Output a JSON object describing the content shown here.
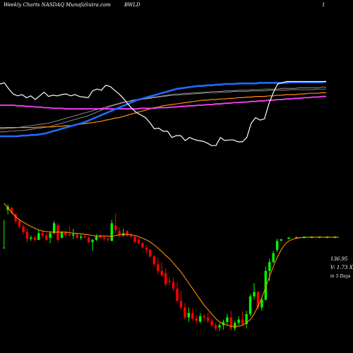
{
  "header": {
    "left": "Weekly Charts NASDAQ MunafaSutra.com",
    "middle": "BWLD",
    "right": "1"
  },
  "readouts": {
    "price": "136.95",
    "volume": "V: 1.73 X",
    "period": "in 5 Days"
  },
  "colors": {
    "background": "#000000",
    "bull": "#00ff00",
    "bear": "#ff0000",
    "ema": "#ff8c00",
    "forecast": "#00ff00",
    "indicator": "#ffffff",
    "ma_blue": "#1e6bff",
    "ma_magenta": "#ff40ff",
    "ma_orange": "#ff8c00",
    "ma_gray": "#aaaaaa"
  },
  "chart_data": [
    {
      "type": "line",
      "panel": "indicators",
      "note_scale": "relative 0-100 (no axis printed)",
      "series": [
        {
          "key": "white",
          "values": [
            92,
            94,
            84,
            76,
            73,
            75,
            70,
            73,
            67,
            73,
            79,
            72,
            74,
            73,
            75,
            76,
            73,
            75,
            72,
            71,
            70,
            81,
            84,
            82,
            90,
            88,
            82,
            76,
            69,
            60,
            52,
            46,
            42,
            38,
            30,
            20,
            21,
            16,
            16,
            6,
            9,
            9,
            1,
            6,
            3,
            1,
            0,
            -3,
            -7,
            -7,
            6,
            1,
            2,
            2,
            -1,
            -1,
            6,
            29,
            38,
            34,
            36,
            60,
            78,
            92,
            94,
            96,
            96,
            96,
            96,
            96,
            96,
            96,
            96,
            96,
            96
          ]
        },
        {
          "key": "blue",
          "values": [
            8,
            8,
            8,
            8,
            8,
            9,
            9,
            10,
            10,
            11,
            12,
            14,
            16,
            18,
            20,
            22,
            24,
            26,
            28,
            30,
            33,
            36,
            39,
            42,
            45,
            48,
            51,
            54,
            57,
            60,
            63,
            66,
            68,
            70,
            72,
            74,
            76,
            78,
            80,
            82,
            84,
            85,
            86,
            87,
            88,
            89,
            89,
            90,
            90,
            91,
            91,
            92,
            92,
            92,
            93,
            93,
            93,
            93,
            93,
            94,
            94,
            94,
            94,
            94,
            94,
            94,
            95,
            95,
            95,
            95,
            95,
            95,
            95,
            95,
            96
          ]
        },
        {
          "key": "magenta",
          "values": [
            58,
            58,
            58,
            58,
            57,
            57,
            56,
            56,
            55,
            55,
            54,
            54,
            53,
            53,
            53,
            52,
            52,
            52,
            52,
            52,
            52,
            52,
            52,
            52,
            52,
            52,
            52,
            52,
            52,
            52,
            52,
            52,
            53,
            53,
            53,
            53,
            54,
            54,
            54,
            55,
            55,
            56,
            56,
            57,
            57,
            58,
            58,
            59,
            59,
            60,
            60,
            61,
            61,
            62,
            62,
            63,
            63,
            64,
            64,
            65,
            65,
            66,
            66,
            67,
            67,
            68,
            68,
            69,
            69,
            70,
            70,
            71,
            71,
            72,
            72
          ]
        },
        {
          "key": "orange",
          "values": [
            22,
            22,
            22,
            22,
            22,
            22,
            22,
            22,
            22,
            23,
            23,
            23,
            23,
            24,
            24,
            25,
            25,
            26,
            27,
            28,
            29,
            30,
            31,
            32,
            34,
            35,
            37,
            38,
            40,
            42,
            44,
            46,
            48,
            50,
            52,
            54,
            55,
            57,
            58,
            59,
            60,
            61,
            62,
            63,
            64,
            65,
            66,
            66,
            67,
            67,
            68,
            68,
            69,
            69,
            70,
            70,
            71,
            71,
            72,
            72,
            72,
            73,
            73,
            74,
            74,
            75,
            75,
            75,
            76,
            76,
            77,
            77,
            77,
            78,
            78
          ]
        },
        {
          "key": "gray1",
          "values": [
            15,
            15,
            16,
            16,
            17,
            17,
            18,
            19,
            20,
            21,
            22,
            23,
            25,
            27,
            29,
            31,
            33,
            35,
            37,
            39,
            41,
            44,
            47,
            50,
            53,
            56,
            58,
            60,
            62,
            64,
            66,
            67,
            68,
            69,
            70,
            71,
            72,
            73,
            74,
            75,
            76,
            76,
            77,
            77,
            78,
            78,
            79,
            79,
            80,
            80,
            80,
            81,
            81,
            81,
            82,
            82,
            82,
            83,
            83,
            83,
            84,
            84,
            84,
            84,
            85,
            85,
            85,
            85,
            86,
            86,
            86,
            86,
            86,
            87,
            87
          ]
        },
        {
          "key": "gray2",
          "values": [
            20,
            20,
            21,
            21,
            22,
            23,
            24,
            25,
            26,
            27,
            28,
            29,
            31,
            33,
            35,
            37,
            39,
            41,
            43,
            45,
            47,
            49,
            51,
            53,
            55,
            57,
            59,
            61,
            63,
            64,
            65,
            66,
            67,
            68,
            69,
            70,
            71,
            72,
            73,
            74,
            74,
            75,
            75,
            76,
            76,
            77,
            77,
            78,
            78,
            78,
            79,
            79,
            79,
            80,
            80,
            80,
            80,
            81,
            81,
            81,
            81,
            82,
            82,
            82,
            82,
            82,
            83,
            83,
            83,
            83,
            83,
            83,
            84,
            84,
            84
          ]
        }
      ]
    },
    {
      "type": "candlestick",
      "panel": "price",
      "note_scale": "relative price units (no axis printed)",
      "candles": [
        {
          "o": 0,
          "h": 50,
          "l": 0,
          "c": 0
        },
        {
          "o": 68,
          "h": 78,
          "l": 60,
          "c": 74
        },
        {
          "o": 72,
          "h": 74,
          "l": 60,
          "c": 62
        },
        {
          "o": 60,
          "h": 62,
          "l": 44,
          "c": 48
        },
        {
          "o": 48,
          "h": 52,
          "l": 34,
          "c": 38
        },
        {
          "o": 38,
          "h": 42,
          "l": 24,
          "c": 28
        },
        {
          "o": 28,
          "h": 34,
          "l": 10,
          "c": 16
        },
        {
          "o": 16,
          "h": 22,
          "l": 12,
          "c": 18
        },
        {
          "o": 18,
          "h": 22,
          "l": 10,
          "c": 14
        },
        {
          "o": 14,
          "h": 32,
          "l": 14,
          "c": 26
        },
        {
          "o": 26,
          "h": 30,
          "l": 18,
          "c": 22
        },
        {
          "o": 22,
          "h": 26,
          "l": 12,
          "c": 14
        },
        {
          "o": 18,
          "h": 30,
          "l": 8,
          "c": 26
        },
        {
          "o": 26,
          "h": 48,
          "l": 24,
          "c": 44
        },
        {
          "o": 40,
          "h": 44,
          "l": 10,
          "c": 14
        },
        {
          "o": 18,
          "h": 30,
          "l": 16,
          "c": 28
        },
        {
          "o": 28,
          "h": 30,
          "l": 18,
          "c": 22
        },
        {
          "o": 24,
          "h": 38,
          "l": 20,
          "c": 22
        },
        {
          "o": 22,
          "h": 34,
          "l": 16,
          "c": 24
        },
        {
          "o": 24,
          "h": 26,
          "l": 16,
          "c": 18
        },
        {
          "o": 18,
          "h": 24,
          "l": 14,
          "c": 20
        },
        {
          "o": 20,
          "h": 24,
          "l": 18,
          "c": 18
        },
        {
          "o": 18,
          "h": 20,
          "l": 8,
          "c": 10
        },
        {
          "o": 10,
          "h": 16,
          "l": -6,
          "c": 14
        },
        {
          "o": 14,
          "h": 24,
          "l": 12,
          "c": 20
        },
        {
          "o": 22,
          "h": 24,
          "l": 16,
          "c": 18
        },
        {
          "o": 18,
          "h": 22,
          "l": 12,
          "c": 16
        },
        {
          "o": 16,
          "h": 18,
          "l": 10,
          "c": 14
        },
        {
          "o": 12,
          "h": 50,
          "l": 12,
          "c": 44
        },
        {
          "o": 40,
          "h": 62,
          "l": 26,
          "c": 32
        },
        {
          "o": 30,
          "h": 36,
          "l": 18,
          "c": 22
        },
        {
          "o": 22,
          "h": 34,
          "l": 20,
          "c": 26
        },
        {
          "o": 30,
          "h": 32,
          "l": 20,
          "c": 22
        },
        {
          "o": 22,
          "h": 26,
          "l": 18,
          "c": 20
        },
        {
          "o": 20,
          "h": 22,
          "l": 8,
          "c": 10
        },
        {
          "o": 14,
          "h": 18,
          "l": 6,
          "c": 8
        },
        {
          "o": 8,
          "h": 10,
          "l": 0,
          "c": 0
        },
        {
          "o": 0,
          "h": 4,
          "l": -10,
          "c": -4
        },
        {
          "o": -4,
          "h": -2,
          "l": -18,
          "c": -16
        },
        {
          "o": -16,
          "h": -14,
          "l": -34,
          "c": -30
        },
        {
          "o": -30,
          "h": -18,
          "l": -48,
          "c": -42
        },
        {
          "o": -42,
          "h": -26,
          "l": -52,
          "c": -50
        },
        {
          "o": -46,
          "h": -38,
          "l": -70,
          "c": -66
        },
        {
          "o": -60,
          "h": -54,
          "l": -68,
          "c": -62
        },
        {
          "o": -62,
          "h": -54,
          "l": -78,
          "c": -74
        },
        {
          "o": -74,
          "h": -62,
          "l": -98,
          "c": -96
        },
        {
          "o": -96,
          "h": -78,
          "l": -112,
          "c": -108
        },
        {
          "o": -108,
          "h": -100,
          "l": -130,
          "c": -126
        },
        {
          "o": -126,
          "h": -108,
          "l": -134,
          "c": -118
        },
        {
          "o": -118,
          "h": -110,
          "l": -132,
          "c": -128
        },
        {
          "o": -128,
          "h": -122,
          "l": -138,
          "c": -132
        },
        {
          "o": -134,
          "h": -118,
          "l": -136,
          "c": -124
        },
        {
          "o": -124,
          "h": -120,
          "l": -132,
          "c": -126
        },
        {
          "o": -126,
          "h": -118,
          "l": -136,
          "c": -132
        },
        {
          "o": -132,
          "h": -128,
          "l": -144,
          "c": -140
        },
        {
          "o": -140,
          "h": -136,
          "l": -150,
          "c": -146
        },
        {
          "o": -144,
          "h": -136,
          "l": -150,
          "c": -140
        },
        {
          "o": -140,
          "h": -130,
          "l": -148,
          "c": -134
        },
        {
          "o": -134,
          "h": -120,
          "l": -140,
          "c": -126
        },
        {
          "o": -126,
          "h": -114,
          "l": -150,
          "c": -146
        },
        {
          "o": -146,
          "h": -132,
          "l": -150,
          "c": -136
        },
        {
          "o": -136,
          "h": -124,
          "l": -140,
          "c": -130
        },
        {
          "o": -130,
          "h": -116,
          "l": -140,
          "c": -138
        },
        {
          "o": -138,
          "h": -114,
          "l": -146,
          "c": -120
        },
        {
          "o": -120,
          "h": -84,
          "l": -124,
          "c": -88
        },
        {
          "o": -88,
          "h": -64,
          "l": -94,
          "c": -80
        },
        {
          "o": -80,
          "h": -78,
          "l": -112,
          "c": -108
        },
        {
          "o": -108,
          "h": -90,
          "l": -114,
          "c": -94
        },
        {
          "o": -94,
          "h": -34,
          "l": -96,
          "c": -42
        },
        {
          "o": -42,
          "h": -20,
          "l": -60,
          "c": -26
        },
        {
          "o": -26,
          "h": -6,
          "l": -28,
          "c": -10
        },
        {
          "o": -4,
          "h": 16,
          "l": -8,
          "c": 12
        }
      ],
      "forecast_start": 72,
      "forecast_values": [
        14,
        16,
        17,
        18,
        18,
        19,
        19,
        19,
        19,
        19,
        19,
        19,
        19,
        19,
        19,
        19
      ],
      "ema": [
        80,
        72,
        64,
        56,
        50,
        46,
        42,
        38,
        35,
        32,
        30,
        29,
        28,
        28,
        28,
        28,
        28,
        27,
        26,
        26,
        25,
        24,
        23,
        22,
        21,
        21,
        21,
        21,
        20,
        22,
        23,
        24,
        24,
        23,
        22,
        20,
        17,
        14,
        10,
        5,
        -1,
        -7,
        -14,
        -20,
        -28,
        -36,
        -44,
        -54,
        -64,
        -74,
        -84,
        -94,
        -104,
        -112,
        -120,
        -128,
        -134,
        -138,
        -140,
        -142,
        -142,
        -142,
        -140,
        -136,
        -130,
        -120,
        -106,
        -90,
        -72,
        -52,
        -34,
        -18,
        -4,
        6,
        12,
        15,
        17,
        18,
        18,
        19,
        19,
        19,
        19,
        19,
        19,
        19,
        19,
        19
      ]
    }
  ]
}
